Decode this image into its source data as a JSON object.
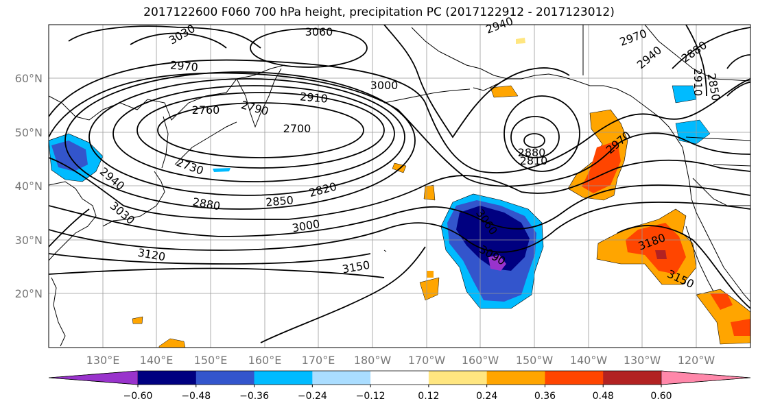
{
  "title": "2017122600 F060 700 hPa height, precipitation PC (2017122912 - 2017123012)",
  "map": {
    "lon_labels": [
      "130°E",
      "140°E",
      "150°E",
      "160°E",
      "170°E",
      "180°W",
      "170°W",
      "160°W",
      "150°W",
      "140°W",
      "130°W",
      "120°W"
    ],
    "lat_labels": [
      "60°N",
      "50°N",
      "40°N",
      "30°N",
      "20°N"
    ],
    "contour_labels": [
      "3030",
      "3060",
      "2940",
      "2970",
      "2940",
      "2910",
      "2880",
      "2850",
      "2970",
      "3000",
      "2910",
      "2760",
      "2790",
      "2700",
      "2880",
      "2810",
      "2970",
      "2730",
      "2940",
      "3030",
      "2880",
      "2850",
      "2820",
      "3000",
      "3060",
      "3090",
      "3180",
      "3120",
      "3150",
      "3150"
    ],
    "contour_color": "#000000",
    "coastline_color": "#000000"
  },
  "colorbar": {
    "ticks": [
      "−0.60",
      "−0.48",
      "−0.36",
      "−0.24",
      "−0.12",
      "0.12",
      "0.24",
      "0.36",
      "0.48",
      "0.60"
    ],
    "colors": [
      "#9933cc",
      "#000080",
      "#3355cc",
      "#00bbff",
      "#aaddff",
      "#ffffff",
      "#ffe680",
      "#ffa500",
      "#ff4500",
      "#b22222",
      "#ff88aa"
    ]
  },
  "chart_data": {
    "type": "contour map",
    "title": "2017122600 F060 700 hPa height, precipitation PC (2017122912 - 2017123012)",
    "field": "700 hPa geopotential height contours with shaded precipitation PC",
    "lon_range": [
      "120°E",
      "125°W"
    ],
    "lat_range": [
      10,
      70
    ],
    "contour_levels": [
      2700,
      2730,
      2760,
      2790,
      2810,
      2820,
      2850,
      2880,
      2910,
      2940,
      2970,
      3000,
      3030,
      3060,
      3090,
      3120,
      3150,
      3180
    ],
    "shading_levels": [
      -0.6,
      -0.48,
      -0.36,
      -0.24,
      -0.12,
      0.12,
      0.24,
      0.36,
      0.48,
      0.6
    ],
    "features": [
      {
        "name": "low center near Kamchatka/Sea of Okhotsk",
        "value": 2700
      },
      {
        "name": "low center over Gulf of Alaska",
        "value": 2880
      },
      {
        "name": "negative precipitation PC area near 30°N 155°W",
        "min": -0.6
      },
      {
        "name": "positive precipitation PC area off west coast US",
        "max": 0.48
      }
    ]
  }
}
